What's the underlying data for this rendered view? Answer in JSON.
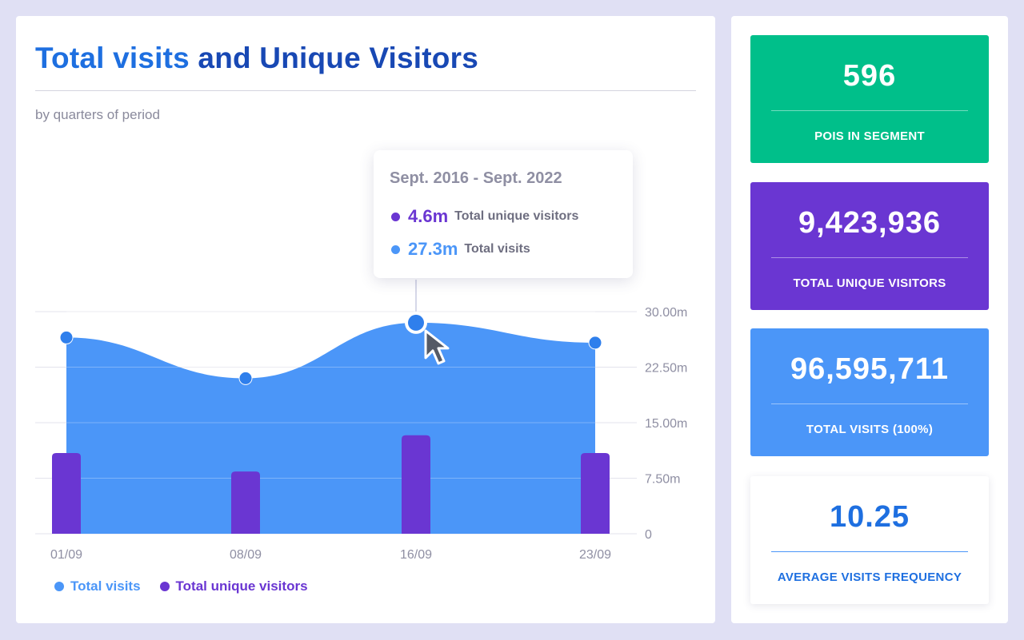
{
  "title": {
    "part1": "Total visits",
    "part2": "and Unique Visitors"
  },
  "subtitle": "by quarters of period",
  "colors": {
    "total_visits": "#4b96f8",
    "unique_visitors": "#6a36d2",
    "green_card": "#00bf8a",
    "purple_card": "#6a36d2",
    "blue_card": "#4b96f8",
    "title_light": "#1e6fe0",
    "title_dark": "#1848b4"
  },
  "tooltip": {
    "period": "Sept. 2016 - Sept. 2022",
    "rows": [
      {
        "value": "4.6m",
        "label": "Total unique visitors",
        "color": "#6a36d2"
      },
      {
        "value": "27.3m",
        "label": "Total visits",
        "color": "#4b96f8"
      }
    ]
  },
  "legend": [
    {
      "label": "Total visits",
      "color": "#4b96f8"
    },
    {
      "label": "Total unique visitors",
      "color": "#6a36d2"
    }
  ],
  "chart_data": {
    "type": "area",
    "categories": [
      "01/09",
      "08/09",
      "16/09",
      "23/09"
    ],
    "series": [
      {
        "name": "Total visits",
        "type": "area",
        "values": [
          26.5,
          21.0,
          28.5,
          25.8
        ]
      },
      {
        "name": "Total unique visitors",
        "type": "bar",
        "values": [
          10.9,
          8.4,
          13.3,
          10.9
        ]
      }
    ],
    "ylim": [
      0,
      30
    ],
    "yticks": [
      0,
      7.5,
      15,
      22.5,
      30
    ],
    "ytick_labels": [
      "0",
      "7.50m",
      "15.00m",
      "22.50m",
      "30.00m"
    ],
    "highlighted_index": 2,
    "grid": true
  },
  "cards": [
    {
      "value": "596",
      "label": "POIS IN SEGMENT",
      "bg": "#00bf8a",
      "fg": "#ffffff",
      "rule": "rgba(255,255,255,0.45)"
    },
    {
      "value": "9,423,936",
      "label": "TOTAL UNIQUE VISITORS",
      "bg": "#6a36d2",
      "fg": "#ffffff",
      "rule": "rgba(255,255,255,0.45)"
    },
    {
      "value": "96,595,711",
      "label": "TOTAL VISITS (100%)",
      "bg": "#4b96f8",
      "fg": "#ffffff",
      "rule": "rgba(255,255,255,0.45)"
    },
    {
      "value": "10.25",
      "label": "AVERAGE VISITS FREQUENCY",
      "bg": "#ffffff",
      "fg": "#1e6fe0",
      "rule": "#4b96f8"
    }
  ]
}
